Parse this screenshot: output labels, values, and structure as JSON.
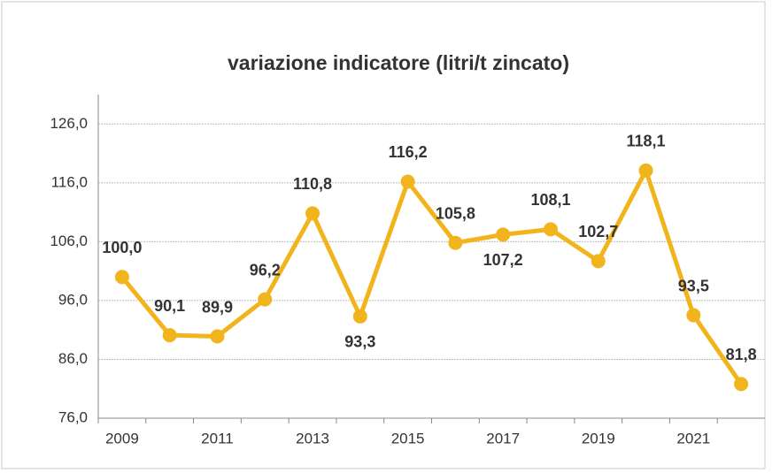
{
  "chart_data": {
    "type": "line",
    "title": "variazione indicatore (litri/t zincato)",
    "categories": [
      "2009",
      null,
      "2011",
      null,
      "2013",
      null,
      "2015",
      null,
      "2017",
      null,
      "2019",
      null,
      "2021",
      null
    ],
    "values": [
      100.0,
      90.1,
      89.9,
      96.2,
      110.8,
      93.3,
      116.2,
      105.8,
      107.2,
      108.1,
      102.7,
      118.1,
      93.5,
      81.8
    ],
    "value_labels": [
      "100,0",
      "90,1",
      "89,9",
      "96,2",
      "110,8",
      "93,3",
      "116,2",
      "105,8",
      "107,2",
      "108,1",
      "102,7",
      "118,1",
      "93,5",
      "81,8"
    ],
    "color": "#f2b41c",
    "ylim": [
      76,
      131
    ],
    "yticks": [
      {
        "value": 76,
        "label": "76,0"
      },
      {
        "value": 86,
        "label": "86,0"
      },
      {
        "value": 96,
        "label": "96,0"
      },
      {
        "value": 106,
        "label": "106,0"
      },
      {
        "value": 116,
        "label": "116,0"
      },
      {
        "value": 126,
        "label": "126,0"
      }
    ],
    "grid": true
  }
}
